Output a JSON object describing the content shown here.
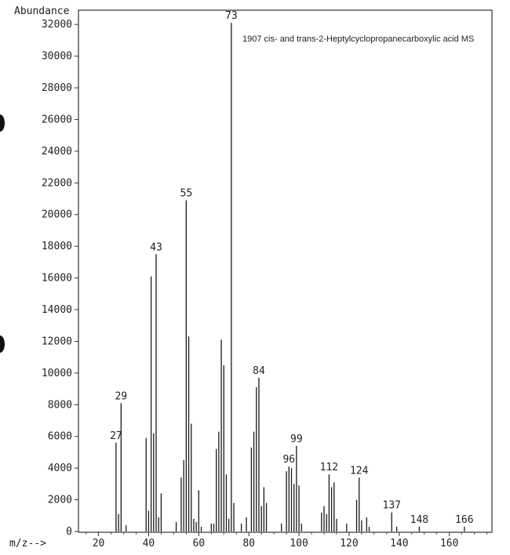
{
  "chart_data": {
    "type": "bar",
    "title": "1907   cis- and trans-2-Heptylcyclopropanecarboxylic acid MS",
    "ylabel": "Abundance",
    "xlabel": "m/z-->",
    "xlim": [
      12,
      177
    ],
    "ylim": [
      0,
      32800
    ],
    "xticks": [
      20,
      40,
      60,
      80,
      100,
      120,
      140,
      160
    ],
    "yticks": [
      0,
      2000,
      4000,
      6000,
      8000,
      10000,
      12000,
      14000,
      16000,
      18000,
      20000,
      22000,
      24000,
      26000,
      28000,
      30000,
      32000
    ],
    "grid": false,
    "peaks": [
      {
        "mz": 27,
        "abundance": 5600
      },
      {
        "mz": 28,
        "abundance": 1100
      },
      {
        "mz": 29,
        "abundance": 8100
      },
      {
        "mz": 31,
        "abundance": 400
      },
      {
        "mz": 39,
        "abundance": 5900
      },
      {
        "mz": 40,
        "abundance": 1300
      },
      {
        "mz": 41,
        "abundance": 16100
      },
      {
        "mz": 42,
        "abundance": 6200
      },
      {
        "mz": 43,
        "abundance": 17500
      },
      {
        "mz": 44,
        "abundance": 900
      },
      {
        "mz": 45,
        "abundance": 2400
      },
      {
        "mz": 51,
        "abundance": 600
      },
      {
        "mz": 53,
        "abundance": 3400
      },
      {
        "mz": 54,
        "abundance": 4500
      },
      {
        "mz": 55,
        "abundance": 20900
      },
      {
        "mz": 56,
        "abundance": 12300
      },
      {
        "mz": 57,
        "abundance": 6800
      },
      {
        "mz": 58,
        "abundance": 800
      },
      {
        "mz": 59,
        "abundance": 600
      },
      {
        "mz": 60,
        "abundance": 2600
      },
      {
        "mz": 61,
        "abundance": 300
      },
      {
        "mz": 65,
        "abundance": 500
      },
      {
        "mz": 66,
        "abundance": 500
      },
      {
        "mz": 67,
        "abundance": 5200
      },
      {
        "mz": 68,
        "abundance": 6300
      },
      {
        "mz": 69,
        "abundance": 12100
      },
      {
        "mz": 70,
        "abundance": 10500
      },
      {
        "mz": 71,
        "abundance": 3600
      },
      {
        "mz": 72,
        "abundance": 800
      },
      {
        "mz": 73,
        "abundance": 32100
      },
      {
        "mz": 74,
        "abundance": 1800
      },
      {
        "mz": 77,
        "abundance": 500
      },
      {
        "mz": 79,
        "abundance": 900
      },
      {
        "mz": 81,
        "abundance": 5300
      },
      {
        "mz": 82,
        "abundance": 6300
      },
      {
        "mz": 83,
        "abundance": 9100
      },
      {
        "mz": 84,
        "abundance": 9700
      },
      {
        "mz": 85,
        "abundance": 1600
      },
      {
        "mz": 86,
        "abundance": 2800
      },
      {
        "mz": 87,
        "abundance": 1800
      },
      {
        "mz": 93,
        "abundance": 500
      },
      {
        "mz": 95,
        "abundance": 3800
      },
      {
        "mz": 96,
        "abundance": 4100
      },
      {
        "mz": 97,
        "abundance": 4000
      },
      {
        "mz": 98,
        "abundance": 3000
      },
      {
        "mz": 99,
        "abundance": 5400
      },
      {
        "mz": 100,
        "abundance": 2900
      },
      {
        "mz": 101,
        "abundance": 500
      },
      {
        "mz": 109,
        "abundance": 1200
      },
      {
        "mz": 110,
        "abundance": 1600
      },
      {
        "mz": 111,
        "abundance": 1100
      },
      {
        "mz": 112,
        "abundance": 3600
      },
      {
        "mz": 113,
        "abundance": 2800
      },
      {
        "mz": 114,
        "abundance": 3100
      },
      {
        "mz": 115,
        "abundance": 800
      },
      {
        "mz": 119,
        "abundance": 500
      },
      {
        "mz": 123,
        "abundance": 2000
      },
      {
        "mz": 124,
        "abundance": 3400
      },
      {
        "mz": 125,
        "abundance": 700
      },
      {
        "mz": 127,
        "abundance": 900
      },
      {
        "mz": 128,
        "abundance": 300
      },
      {
        "mz": 137,
        "abundance": 1200
      },
      {
        "mz": 139,
        "abundance": 300
      },
      {
        "mz": 148,
        "abundance": 300
      },
      {
        "mz": 166,
        "abundance": 300
      }
    ],
    "peak_labels": [
      {
        "mz": 27,
        "text": "27"
      },
      {
        "mz": 29,
        "text": "29"
      },
      {
        "mz": 43,
        "text": "43"
      },
      {
        "mz": 55,
        "text": "55"
      },
      {
        "mz": 73,
        "text": "73"
      },
      {
        "mz": 84,
        "text": "84"
      },
      {
        "mz": 96,
        "text": "96"
      },
      {
        "mz": 99,
        "text": "99"
      },
      {
        "mz": 112,
        "text": "112"
      },
      {
        "mz": 124,
        "text": "124"
      },
      {
        "mz": 137,
        "text": "137"
      },
      {
        "mz": 148,
        "text": "148"
      },
      {
        "mz": 166,
        "text": "166"
      }
    ]
  }
}
